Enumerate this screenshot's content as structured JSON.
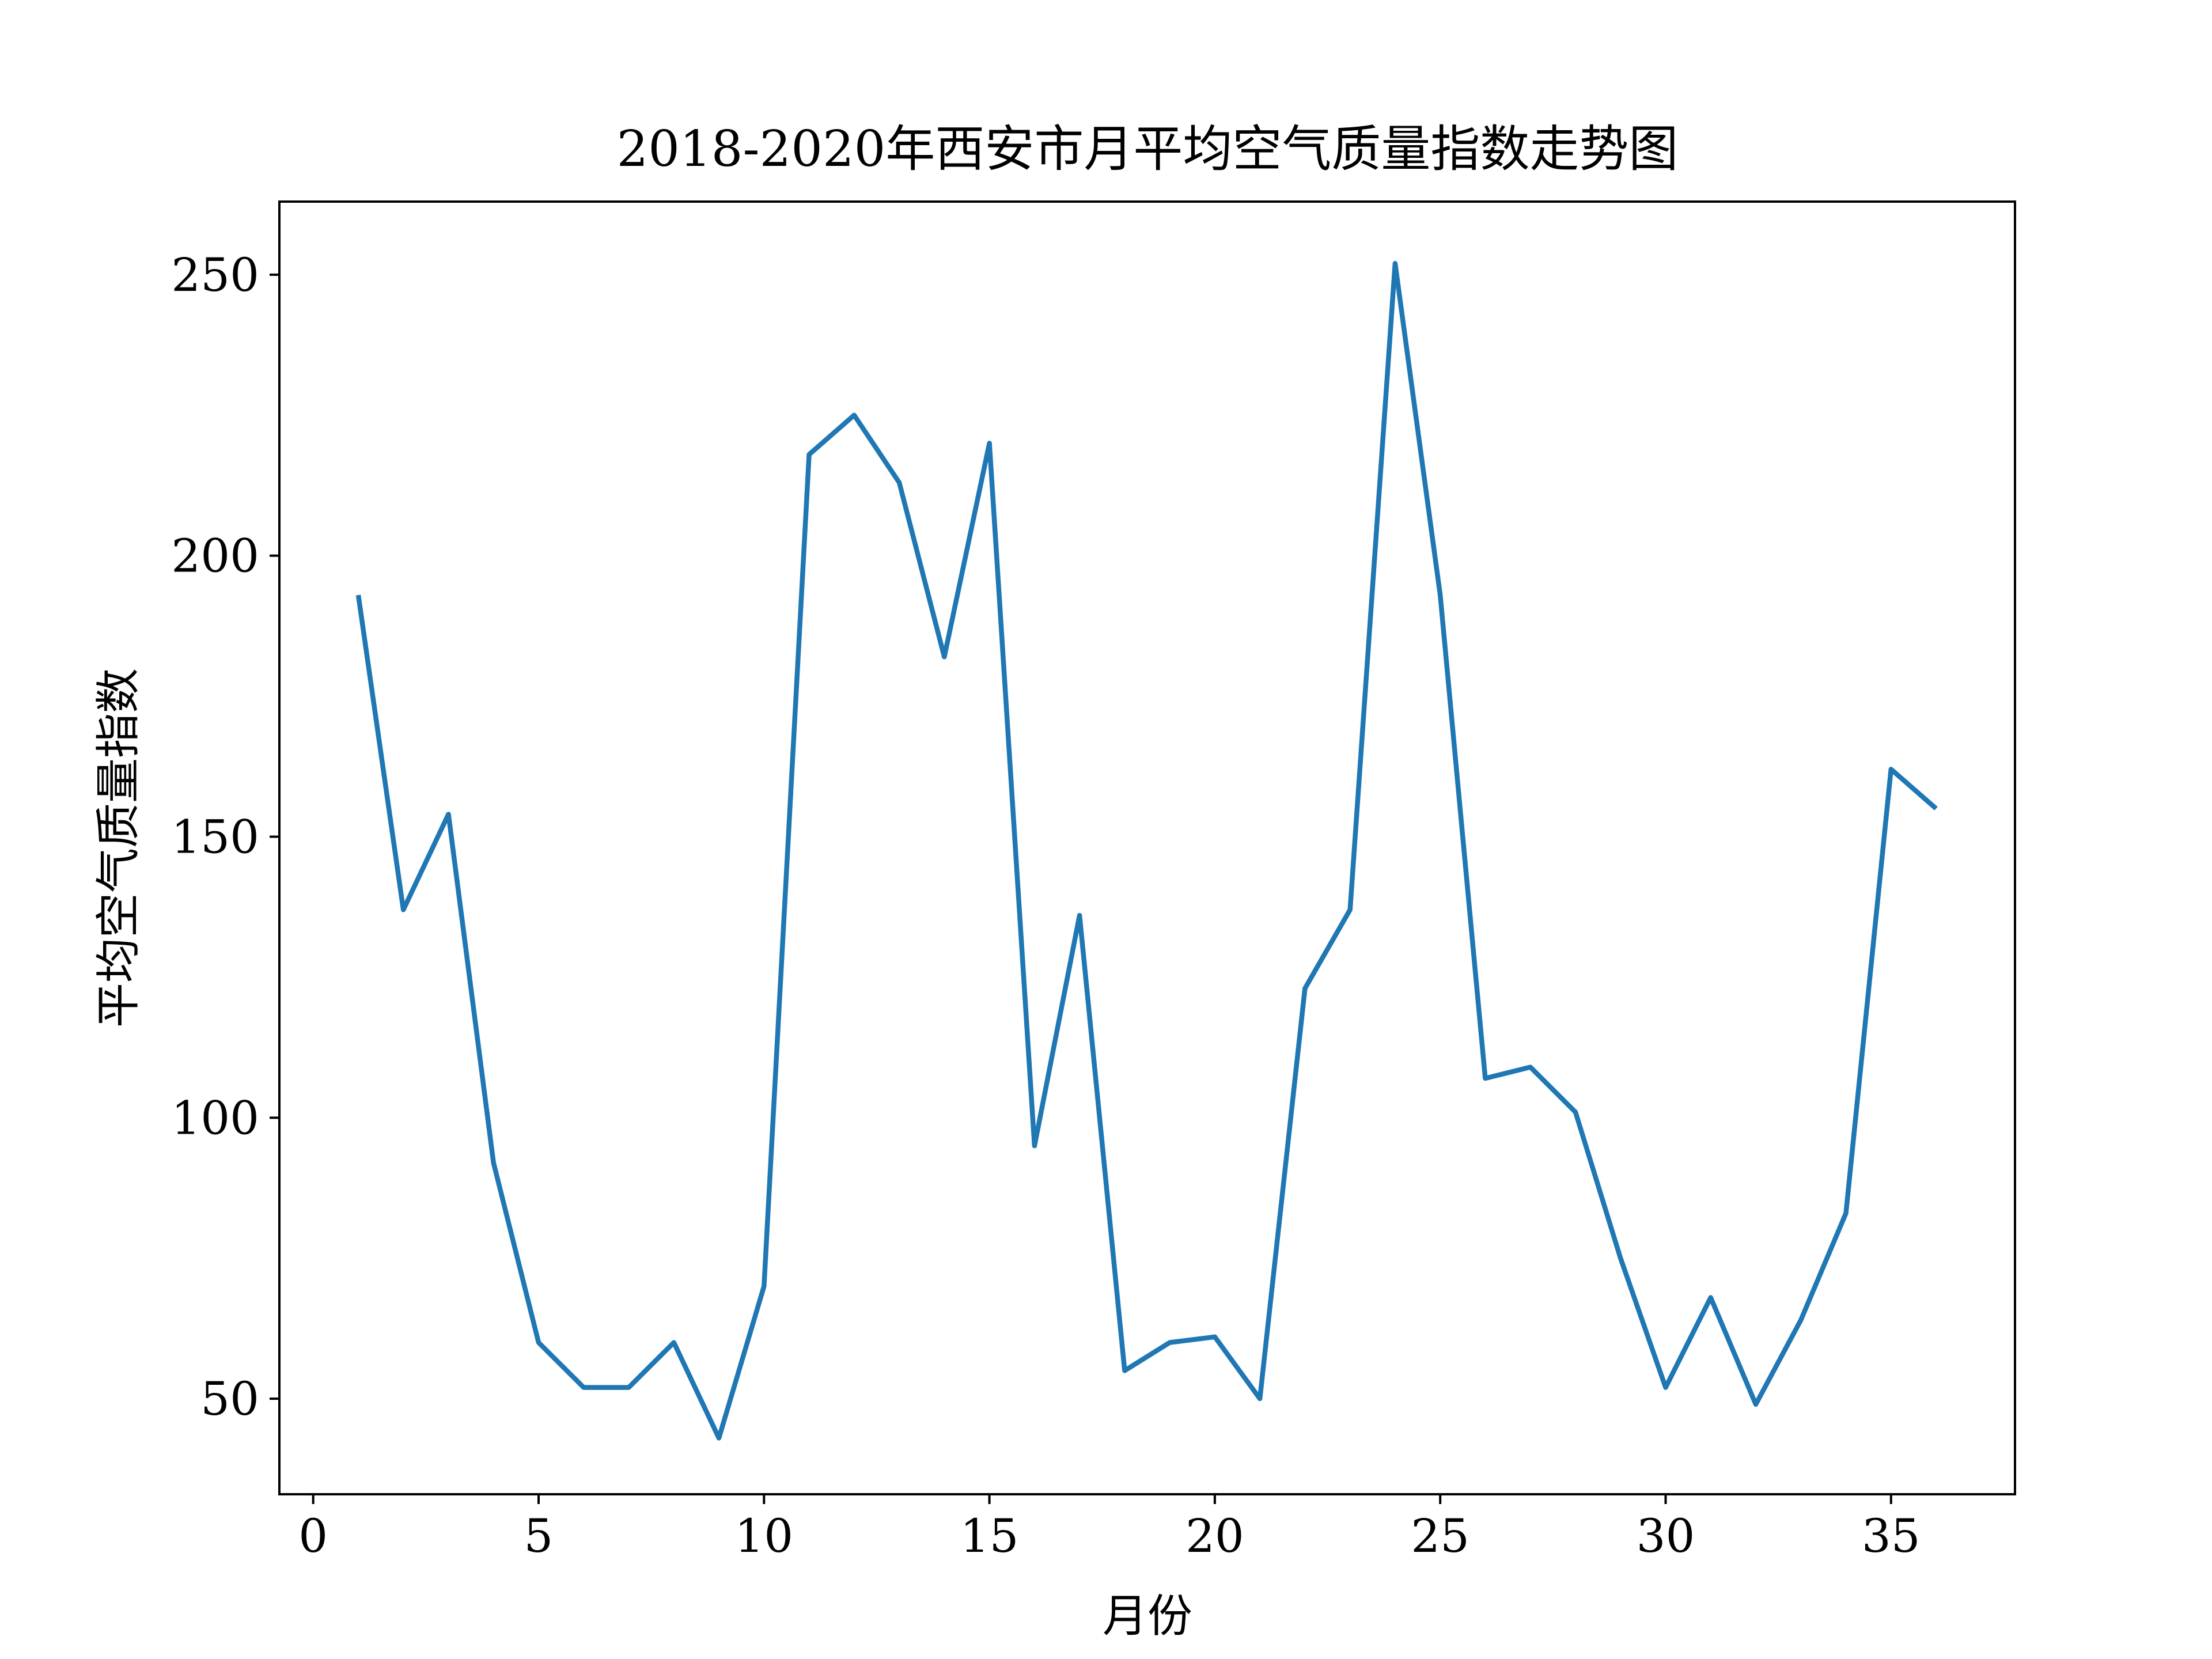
{
  "chart_data": {
    "type": "line",
    "title": "2018-2020年西安市月平均空气质量指数走势图",
    "xlabel": "月份",
    "ylabel": "平均空气质量指数",
    "xlim": [
      -0.75,
      37.75
    ],
    "ylim": [
      33,
      263
    ],
    "xticks": [
      0,
      5,
      10,
      15,
      20,
      25,
      30,
      35
    ],
    "yticks": [
      50,
      100,
      150,
      200,
      250
    ],
    "grid": false,
    "legend": "none",
    "series": [
      {
        "color": "#1f77b4",
        "x": [
          1,
          2,
          3,
          4,
          5,
          6,
          7,
          8,
          9,
          10,
          11,
          12,
          13,
          14,
          15,
          16,
          17,
          18,
          19,
          20,
          21,
          22,
          23,
          24,
          25,
          26,
          27,
          28,
          29,
          30,
          31,
          32,
          33,
          34,
          35,
          36
        ],
        "y": [
          193,
          137,
          154,
          92,
          60,
          52,
          52,
          60,
          43,
          70,
          218,
          225,
          213,
          182,
          220,
          95,
          136,
          55,
          60,
          61,
          50,
          123,
          137,
          252,
          193,
          107,
          109,
          101,
          75,
          52,
          68,
          49,
          64,
          83,
          162,
          155
        ]
      }
    ]
  }
}
